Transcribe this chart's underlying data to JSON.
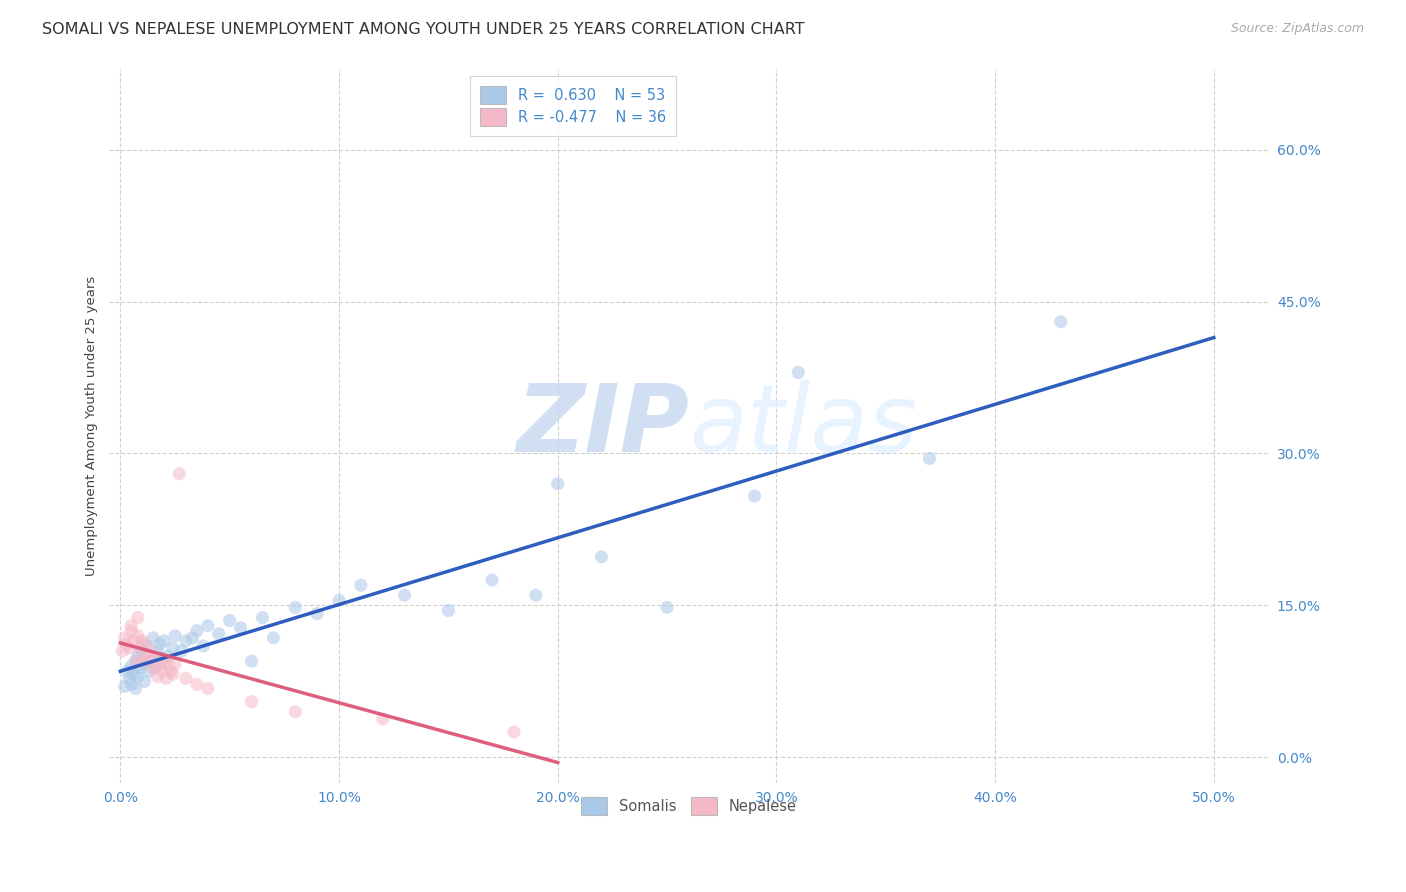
{
  "title": "SOMALI VS NEPALESE UNEMPLOYMENT AMONG YOUTH UNDER 25 YEARS CORRELATION CHART",
  "source": "Source: ZipAtlas.com",
  "xlabel_ticks": [
    "0.0%",
    "10.0%",
    "20.0%",
    "30.0%",
    "40.0%",
    "50.0%"
  ],
  "xlabel_vals": [
    0.0,
    0.1,
    0.2,
    0.3,
    0.4,
    0.5
  ],
  "ylabel_ticks": [
    "0.0%",
    "15.0%",
    "30.0%",
    "45.0%",
    "60.0%"
  ],
  "ylabel_vals": [
    0.0,
    0.15,
    0.3,
    0.45,
    0.6
  ],
  "ylabel_label": "Unemployment Among Youth under 25 years",
  "watermark_zip": "ZIP",
  "watermark_atlas": "atlas",
  "legend_somali_label": "Somalis",
  "legend_nepalese_label": "Nepalese",
  "somali_R": 0.63,
  "somali_N": 53,
  "nepalese_R": -0.477,
  "nepalese_N": 36,
  "somali_color": "#aac8e8",
  "nepalese_color": "#f5b8c8",
  "somali_line_color": "#2255bb",
  "nepalese_line_color": "#dd5577",
  "somali_scatter_x": [
    0.002,
    0.003,
    0.004,
    0.005,
    0.005,
    0.006,
    0.007,
    0.007,
    0.008,
    0.008,
    0.009,
    0.01,
    0.01,
    0.011,
    0.012,
    0.013,
    0.014,
    0.015,
    0.016,
    0.017,
    0.018,
    0.019,
    0.02,
    0.022,
    0.024,
    0.025,
    0.028,
    0.03,
    0.033,
    0.035,
    0.038,
    0.04,
    0.045,
    0.05,
    0.055,
    0.06,
    0.065,
    0.07,
    0.08,
    0.09,
    0.1,
    0.11,
    0.13,
    0.15,
    0.17,
    0.19,
    0.2,
    0.22,
    0.25,
    0.29,
    0.31,
    0.37,
    0.43
  ],
  "somali_scatter_y": [
    0.07,
    0.085,
    0.078,
    0.072,
    0.09,
    0.082,
    0.068,
    0.095,
    0.08,
    0.1,
    0.088,
    0.092,
    0.105,
    0.075,
    0.11,
    0.085,
    0.095,
    0.118,
    0.088,
    0.105,
    0.112,
    0.098,
    0.115,
    0.1,
    0.108,
    0.12,
    0.105,
    0.115,
    0.118,
    0.125,
    0.11,
    0.13,
    0.122,
    0.135,
    0.128,
    0.095,
    0.138,
    0.118,
    0.148,
    0.142,
    0.155,
    0.17,
    0.16,
    0.145,
    0.175,
    0.16,
    0.27,
    0.198,
    0.148,
    0.258,
    0.38,
    0.295,
    0.43
  ],
  "nepalese_scatter_x": [
    0.001,
    0.002,
    0.003,
    0.004,
    0.005,
    0.005,
    0.006,
    0.007,
    0.008,
    0.008,
    0.009,
    0.01,
    0.01,
    0.011,
    0.012,
    0.013,
    0.014,
    0.015,
    0.016,
    0.017,
    0.018,
    0.019,
    0.02,
    0.021,
    0.022,
    0.023,
    0.024,
    0.025,
    0.027,
    0.03,
    0.035,
    0.04,
    0.06,
    0.08,
    0.12,
    0.18
  ],
  "nepalese_scatter_y": [
    0.105,
    0.118,
    0.112,
    0.108,
    0.125,
    0.13,
    0.115,
    0.095,
    0.12,
    0.138,
    0.108,
    0.115,
    0.095,
    0.112,
    0.1,
    0.095,
    0.105,
    0.088,
    0.098,
    0.08,
    0.092,
    0.085,
    0.095,
    0.078,
    0.09,
    0.085,
    0.082,
    0.092,
    0.28,
    0.078,
    0.072,
    0.068,
    0.055,
    0.045,
    0.038,
    0.025
  ],
  "xmin": -0.005,
  "xmax": 0.525,
  "ymin": -0.025,
  "ymax": 0.68,
  "grid_color": "#cccccc",
  "bg_color": "#ffffff",
  "scatter_size": 90,
  "scatter_alpha": 0.55,
  "line_width": 2.5,
  "line_alpha": 0.95,
  "title_fontsize": 11.5,
  "axis_label_fontsize": 9.5,
  "tick_fontsize": 10,
  "legend_fontsize": 10.5,
  "source_fontsize": 9
}
